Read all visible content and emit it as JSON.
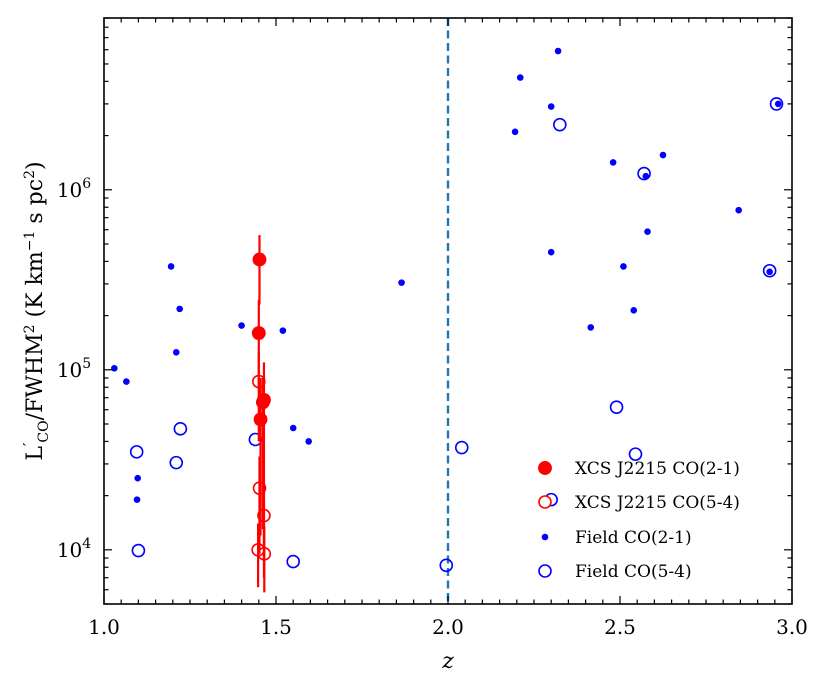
{
  "chart_data": {
    "type": "scatter",
    "title": "",
    "xlabel": "z",
    "ylabel": "L′CO/FWHM² (K km⁻¹ s pc²)",
    "ylabel_parts": {
      "main": "L",
      "prime": "′",
      "sub": "CO",
      "rest": "/FWHM",
      "sup1": "2",
      "units": " (K km",
      "sup2": "−1",
      "units2": " s pc",
      "sup3": "2",
      "close": ")"
    },
    "xlim": [
      1.0,
      3.0
    ],
    "ylim": [
      5000,
      9000000
    ],
    "yscale": "log",
    "xticks": [
      1.0,
      1.5,
      2.0,
      2.5,
      3.0
    ],
    "xtick_labels": [
      "1.0",
      "1.5",
      "2.0",
      "2.5",
      "3.0"
    ],
    "yticks": [
      10000,
      100000,
      1000000
    ],
    "ytick_labels": [
      {
        "base": "10",
        "exp": "4"
      },
      {
        "base": "10",
        "exp": "5"
      },
      {
        "base": "10",
        "exp": "6"
      }
    ],
    "vline": {
      "x": 2.0,
      "color": "#1f77b4",
      "style": "dashed"
    },
    "colors": {
      "cluster": "#ff0000",
      "field": "#0000ff"
    },
    "legend": {
      "position": "lower-right",
      "entries": [
        {
          "label": "XCS J2215 CO(2-1)",
          "marker": "filled-large",
          "color": "#ff0000"
        },
        {
          "label": "XCS J2215 CO(5-4)",
          "marker": "open-large",
          "color": "#ff0000"
        },
        {
          "label": "Field CO(2-1)",
          "marker": "filled-small",
          "color": "#0000ff"
        },
        {
          "label": "Field CO(5-4)",
          "marker": "open-large",
          "color": "#0000ff"
        }
      ]
    },
    "series": [
      {
        "name": "XCS J2215 CO(2-1)",
        "marker": "filled-large",
        "points": [
          {
            "x": 1.452,
            "y": 410000,
            "ylo": 230000,
            "yhi": 560000
          },
          {
            "x": 1.45,
            "y": 160000,
            "ylo": 78000,
            "yhi": 245000
          },
          {
            "x": 1.465,
            "y": 68000,
            "ylo": 9000,
            "yhi": 110000
          },
          {
            "x": 1.455,
            "y": 53000,
            "ylo": 12000,
            "yhi": 90000
          },
          {
            "x": 1.462,
            "y": 66000,
            "ylo": 13000,
            "yhi": 90000
          }
        ]
      },
      {
        "name": "XCS J2215 CO(5-4)",
        "marker": "open-large",
        "points": [
          {
            "x": 1.45,
            "y": 86000,
            "ylo": 40000,
            "yhi": 125000
          },
          {
            "x": 1.452,
            "y": 22000,
            "ylo": 9500,
            "yhi": 33000
          },
          {
            "x": 1.465,
            "y": 15500,
            "ylo": 7000,
            "yhi": 23000
          },
          {
            "x": 1.448,
            "y": 10000,
            "ylo": 6200,
            "yhi": 14000
          },
          {
            "x": 1.466,
            "y": 9500,
            "ylo": 5800,
            "yhi": 13500
          }
        ]
      },
      {
        "name": "Field CO(2-1)",
        "marker": "filled-small",
        "points": [
          {
            "x": 1.03,
            "y": 102000
          },
          {
            "x": 1.065,
            "y": 86000
          },
          {
            "x": 1.098,
            "y": 25000
          },
          {
            "x": 1.096,
            "y": 19000
          },
          {
            "x": 1.195,
            "y": 375000
          },
          {
            "x": 1.21,
            "y": 125000
          },
          {
            "x": 1.22,
            "y": 218000
          },
          {
            "x": 1.4,
            "y": 176000
          },
          {
            "x": 1.52,
            "y": 165000
          },
          {
            "x": 1.55,
            "y": 47500
          },
          {
            "x": 1.595,
            "y": 40000
          },
          {
            "x": 1.865,
            "y": 305000
          },
          {
            "x": 2.195,
            "y": 2100000
          },
          {
            "x": 2.21,
            "y": 4200000
          },
          {
            "x": 2.3,
            "y": 2900000
          },
          {
            "x": 2.32,
            "y": 5900000
          },
          {
            "x": 2.3,
            "y": 450000
          },
          {
            "x": 2.415,
            "y": 172000
          },
          {
            "x": 2.48,
            "y": 1420000
          },
          {
            "x": 2.51,
            "y": 375000
          },
          {
            "x": 2.54,
            "y": 214000
          },
          {
            "x": 2.575,
            "y": 1190000
          },
          {
            "x": 2.58,
            "y": 585000
          },
          {
            "x": 2.625,
            "y": 1560000
          },
          {
            "x": 2.845,
            "y": 770000
          },
          {
            "x": 2.935,
            "y": 350000
          },
          {
            "x": 2.96,
            "y": 3000000
          }
        ]
      },
      {
        "name": "Field CO(5-4)",
        "marker": "open-large",
        "points": [
          {
            "x": 1.095,
            "y": 35000
          },
          {
            "x": 1.1,
            "y": 9900
          },
          {
            "x": 1.21,
            "y": 30500
          },
          {
            "x": 1.222,
            "y": 47000
          },
          {
            "x": 1.44,
            "y": 41000
          },
          {
            "x": 1.55,
            "y": 8600
          },
          {
            "x": 1.995,
            "y": 8200
          },
          {
            "x": 2.04,
            "y": 37000
          },
          {
            "x": 2.3,
            "y": 19000
          },
          {
            "x": 2.325,
            "y": 2300000
          },
          {
            "x": 2.49,
            "y": 62000
          },
          {
            "x": 2.545,
            "y": 34000
          },
          {
            "x": 2.57,
            "y": 1230000
          },
          {
            "x": 2.935,
            "y": 355000
          },
          {
            "x": 2.955,
            "y": 3000000
          }
        ]
      }
    ]
  }
}
